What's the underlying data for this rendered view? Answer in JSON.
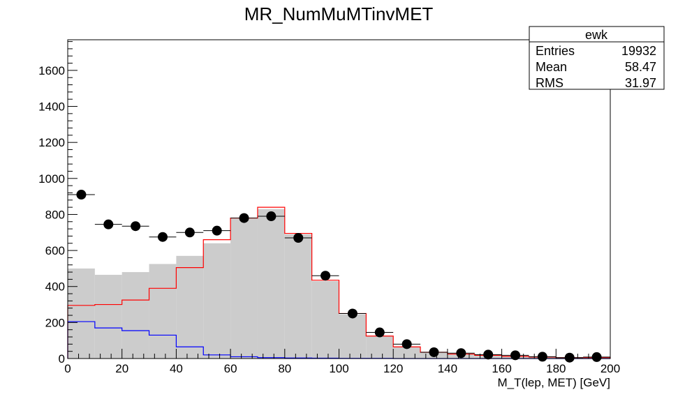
{
  "chart_data": {
    "type": "histogram",
    "title": "MR_NumMuMTinvMET",
    "xlabel": "M_T(lep, MET) [GeV]",
    "ylabel": "",
    "xlim": [
      0,
      200
    ],
    "ylim": [
      0,
      1770
    ],
    "x_ticks": [
      0,
      20,
      40,
      60,
      80,
      100,
      120,
      140,
      160,
      180,
      200
    ],
    "y_ticks": [
      0,
      200,
      400,
      600,
      800,
      1000,
      1200,
      1400,
      1600
    ],
    "bin_edges": [
      0,
      10,
      20,
      30,
      40,
      50,
      60,
      70,
      80,
      90,
      100,
      110,
      120,
      130,
      140,
      150,
      160,
      170,
      180,
      190,
      200
    ],
    "series": [
      {
        "style": "filled-histogram",
        "fill_color": "#cccccc",
        "values": [
          500,
          465,
          480,
          525,
          570,
          640,
          775,
          830,
          690,
          430,
          245,
          125,
          65,
          35,
          25,
          18,
          12,
          8,
          5,
          5
        ]
      },
      {
        "style": "step-line",
        "color": "#ff0000",
        "values": [
          295,
          300,
          325,
          390,
          505,
          660,
          780,
          840,
          695,
          435,
          250,
          125,
          65,
          35,
          25,
          18,
          12,
          8,
          5,
          5
        ]
      },
      {
        "style": "step-line",
        "color": "#0000ff",
        "values": [
          205,
          170,
          155,
          130,
          65,
          20,
          10,
          5,
          3,
          2,
          1,
          1,
          0,
          0,
          0,
          0,
          0,
          0,
          0,
          0
        ]
      },
      {
        "style": "markers-with-xerr",
        "color": "#000000",
        "values": [
          910,
          745,
          735,
          675,
          700,
          710,
          780,
          790,
          670,
          460,
          250,
          145,
          80,
          35,
          30,
          22,
          18,
          10,
          5,
          8
        ]
      }
    ],
    "stats_box": {
      "name": "ewk",
      "rows": [
        {
          "label": "Entries",
          "value": "19932"
        },
        {
          "label": "Mean",
          "value": "58.47"
        },
        {
          "label": "RMS",
          "value": "31.97"
        }
      ]
    }
  }
}
